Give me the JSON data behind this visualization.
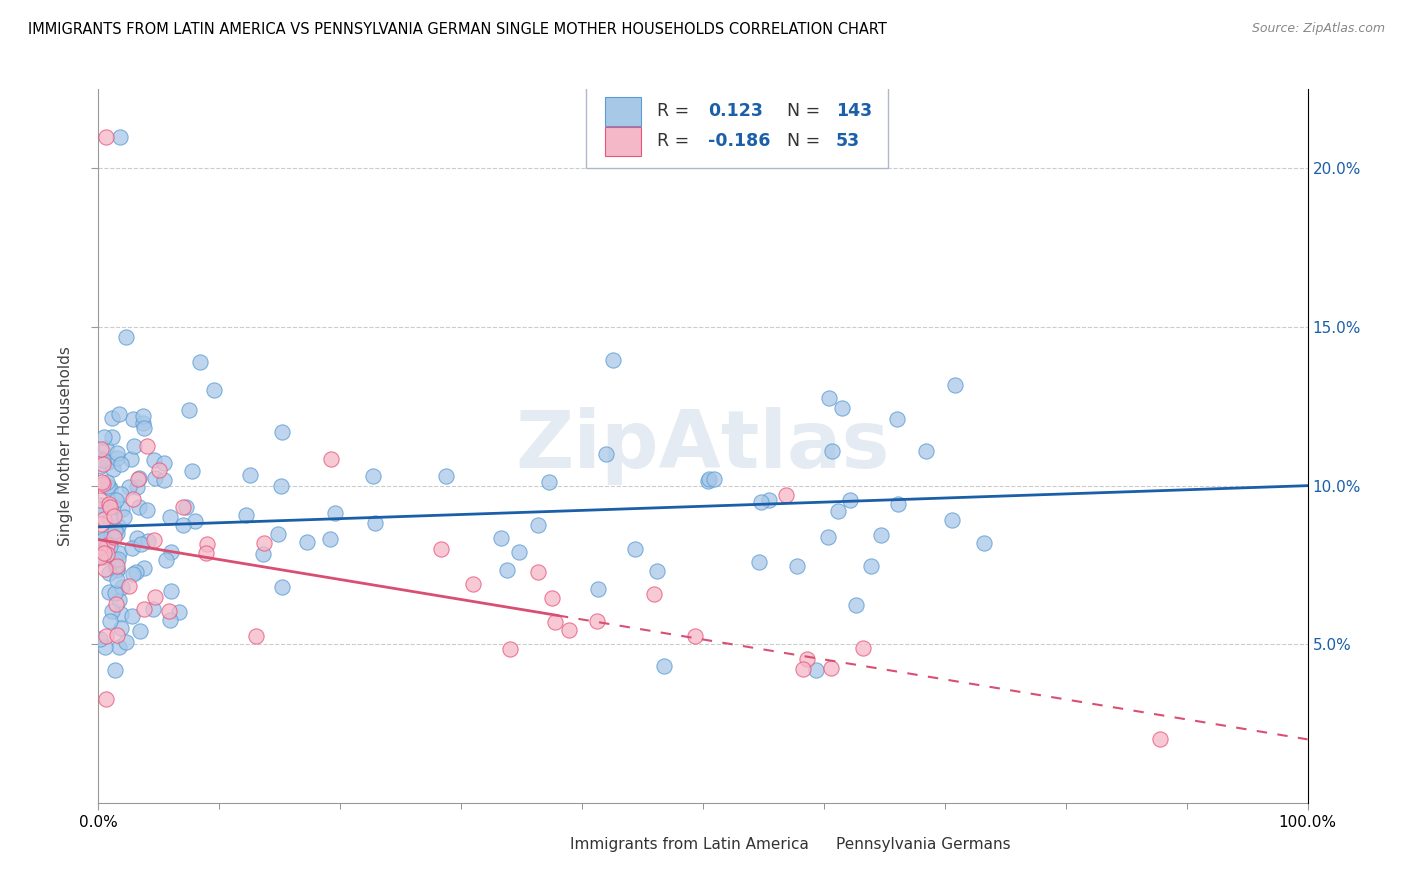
{
  "title": "IMMIGRANTS FROM LATIN AMERICA VS PENNSYLVANIA GERMAN SINGLE MOTHER HOUSEHOLDS CORRELATION CHART",
  "source": "Source: ZipAtlas.com",
  "ylabel": "Single Mother Households",
  "blue_R": 0.123,
  "blue_N": 143,
  "pink_R": -0.186,
  "pink_N": 53,
  "blue_color": "#a8c8e8",
  "blue_edge_color": "#5b9bd5",
  "pink_color": "#f4b8c8",
  "pink_edge_color": "#e8547a",
  "blue_line_color": "#1a5fa8",
  "pink_line_color": "#d94f72",
  "legend_label_blue": "Immigrants from Latin America",
  "legend_label_pink": "Pennsylvania Germans",
  "watermark": "ZipAtlas",
  "r_n_color": "#1a5fa8",
  "blue_line_y_start": 0.087,
  "blue_line_y_end": 0.1,
  "pink_line_y_start": 0.083,
  "pink_line_solid_end_x": 0.38,
  "pink_line_y_end": 0.02,
  "xlim": [
    0.0,
    1.0
  ],
  "ylim": [
    0.0,
    0.225
  ],
  "yticks": [
    0.05,
    0.1,
    0.15,
    0.2
  ],
  "ytick_labels": [
    "5.0%",
    "10.0%",
    "15.0%",
    "20.0%"
  ]
}
